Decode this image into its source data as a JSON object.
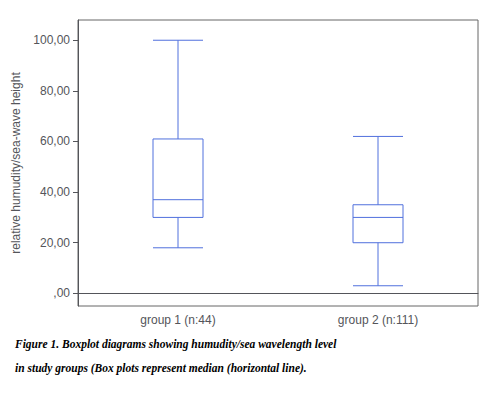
{
  "chart_data": {
    "type": "boxplot",
    "categories": [
      "group 1 (n:44)",
      "group 2 (n:111)"
    ],
    "values": [
      [
        18,
        30,
        37,
        61,
        100
      ],
      [
        3,
        20,
        30,
        35,
        62
      ]
    ],
    "ylabel": "relative humudity/sea-wave height",
    "ylim": [
      -5,
      108
    ],
    "yticks": [
      {
        "value": 0,
        "label": ",00"
      },
      {
        "value": 20,
        "label": "20,00"
      },
      {
        "value": 40,
        "label": "40,00"
      },
      {
        "value": 60,
        "label": "60,00"
      },
      {
        "value": 80,
        "label": "80,00"
      },
      {
        "value": 100,
        "label": "100,00"
      }
    ],
    "annotations": [
      "Figure 1. Boxplot diagrams showing humudity/sea wavelength level",
      "in study groups (Box plots represent median (horizontal line)."
    ],
    "grid": false
  }
}
